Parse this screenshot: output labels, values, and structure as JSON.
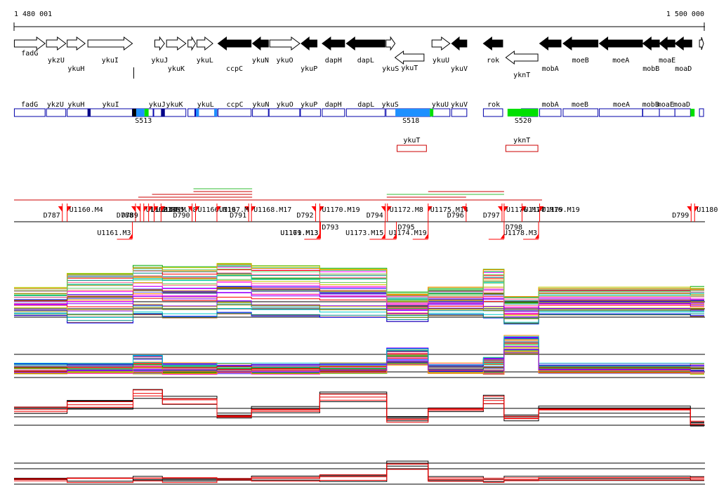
{
  "ruler": {
    "start_label": "1 480 001",
    "end_label": "1 500 000",
    "start": 1480001,
    "end": 1500000
  },
  "colors": {
    "gene_fill_forward": "#ffffff",
    "gene_fill_reverse": "#000000",
    "annotation_border": "#0000aa",
    "segment_blue": "#1e90ff",
    "segment_green": "#00e000",
    "segment_navy": "#000088",
    "transcript_border": "#cc0000",
    "breakpoint_marker": "#ff0000",
    "profile_black": "#000000",
    "profile_red": "#ee0000"
  },
  "genes": [
    {
      "name": "fadG",
      "start": 1480010,
      "end": 1480900,
      "strand": "+",
      "row": 0
    },
    {
      "name": "ykzU",
      "start": 1480940,
      "end": 1481500,
      "strand": "+",
      "row": 1
    },
    {
      "name": "ykuH",
      "start": 1481540,
      "end": 1482060,
      "strand": "+",
      "row": 2
    },
    {
      "name": "ykuI",
      "start": 1482140,
      "end": 1483430,
      "strand": "+",
      "row": 1
    },
    {
      "name": "",
      "start": 1483470,
      "end": 1483510,
      "strand": "-",
      "row": 3
    },
    {
      "name": "ykuJ",
      "start": 1484080,
      "end": 1484360,
      "strand": "+",
      "row": 1
    },
    {
      "name": "ykuK",
      "start": 1484420,
      "end": 1484980,
      "strand": "+",
      "row": 2
    },
    {
      "name": "",
      "start": 1485040,
      "end": 1485260,
      "strand": "+",
      "row": 0
    },
    {
      "name": "ykuL",
      "start": 1485300,
      "end": 1485760,
      "strand": "+",
      "row": 1
    },
    {
      "name": "ccpC",
      "start": 1485910,
      "end": 1486870,
      "strand": "-",
      "row": 2
    },
    {
      "name": "ykuN",
      "start": 1486910,
      "end": 1487370,
      "strand": "-",
      "row": 1
    },
    {
      "name": "ykuO",
      "start": 1487410,
      "end": 1488280,
      "strand": "+",
      "row": 1
    },
    {
      "name": "ykuP",
      "start": 1488320,
      "end": 1488780,
      "strand": "-",
      "row": 2
    },
    {
      "name": "dapH",
      "start": 1488930,
      "end": 1489580,
      "strand": "-",
      "row": 1
    },
    {
      "name": "dapL",
      "start": 1489630,
      "end": 1490750,
      "strand": "-",
      "row": 1
    },
    {
      "name": "ykuS",
      "start": 1490780,
      "end": 1491040,
      "strand": "+",
      "row": 2
    },
    {
      "name": "ykuT",
      "start": 1491040,
      "end": 1491880,
      "strand": "-",
      "row": 4
    },
    {
      "name": "ykuU",
      "start": 1492110,
      "end": 1492630,
      "strand": "+",
      "row": 1
    },
    {
      "name": "ykuV",
      "start": 1492680,
      "end": 1493120,
      "strand": "-",
      "row": 2
    },
    {
      "name": "rok",
      "start": 1493600,
      "end": 1494160,
      "strand": "-",
      "row": 1
    },
    {
      "name": "yknT",
      "start": 1494250,
      "end": 1495180,
      "strand": "-",
      "row": 5
    },
    {
      "name": "mobA",
      "start": 1495230,
      "end": 1495850,
      "strand": "-",
      "row": 2
    },
    {
      "name": "moeB",
      "start": 1495910,
      "end": 1496920,
      "strand": "-",
      "row": 1
    },
    {
      "name": "moeA",
      "start": 1496960,
      "end": 1498210,
      "strand": "-",
      "row": 1
    },
    {
      "name": "mobB",
      "start": 1498220,
      "end": 1498700,
      "strand": "-",
      "row": 2
    },
    {
      "name": "moaE",
      "start": 1498700,
      "end": 1499150,
      "strand": "-",
      "row": 1
    },
    {
      "name": "moaD",
      "start": 1499150,
      "end": 1499640,
      "strand": "-",
      "row": 2
    },
    {
      "name": "",
      "start": 1499860,
      "end": 1499980,
      "strand": "+",
      "row": 0
    }
  ],
  "annotation_labels": [
    {
      "name": "fadG",
      "pos": 1480450
    },
    {
      "name": "ykzU",
      "pos": 1481200
    },
    {
      "name": "ykuH",
      "pos": 1481800
    },
    {
      "name": "ykuI",
      "pos": 1482800
    },
    {
      "name": "ykuJ",
      "pos": 1484150
    },
    {
      "name": "ykuK",
      "pos": 1484650
    },
    {
      "name": "ykuL",
      "pos": 1485550
    },
    {
      "name": "ccpC",
      "pos": 1486400
    },
    {
      "name": "ykuN",
      "pos": 1487150
    },
    {
      "name": "ykuO",
      "pos": 1487850
    },
    {
      "name": "ykuP",
      "pos": 1488550
    },
    {
      "name": "dapH",
      "pos": 1489250
    },
    {
      "name": "dapL",
      "pos": 1490200
    },
    {
      "name": "ykuS",
      "pos": 1490900
    },
    {
      "name": "ykuU",
      "pos": 1492350
    },
    {
      "name": "ykuV",
      "pos": 1492900
    },
    {
      "name": "rok",
      "pos": 1493900
    },
    {
      "name": "mobA",
      "pos": 1495540
    },
    {
      "name": "moeB",
      "pos": 1496400
    },
    {
      "name": "moeA",
      "pos": 1497600
    },
    {
      "name": "mobB",
      "pos": 1498450
    },
    {
      "name": "moaE",
      "pos": 1498880
    },
    {
      "name": "moaD",
      "pos": 1499350
    }
  ],
  "annotation_boxes": [
    {
      "start": 1480010,
      "end": 1480900
    },
    {
      "start": 1480940,
      "end": 1481500
    },
    {
      "start": 1481540,
      "end": 1483430
    },
    {
      "start": 1483430,
      "end": 1484030
    },
    {
      "start": 1484050,
      "end": 1484980
    },
    {
      "start": 1485040,
      "end": 1485240
    },
    {
      "start": 1485260,
      "end": 1485880
    },
    {
      "start": 1485910,
      "end": 1486870
    },
    {
      "start": 1486910,
      "end": 1487370
    },
    {
      "start": 1487390,
      "end": 1488280
    },
    {
      "start": 1488300,
      "end": 1488880
    },
    {
      "start": 1488930,
      "end": 1489580
    },
    {
      "start": 1489630,
      "end": 1490750
    },
    {
      "start": 1490780,
      "end": 1492070
    },
    {
      "start": 1492110,
      "end": 1492630
    },
    {
      "start": 1492680,
      "end": 1493120
    },
    {
      "start": 1493600,
      "end": 1494160
    },
    {
      "start": 1494700,
      "end": 1495180
    },
    {
      "start": 1495230,
      "end": 1495850
    },
    {
      "start": 1495910,
      "end": 1496920
    },
    {
      "start": 1496960,
      "end": 1498210
    },
    {
      "start": 1498220,
      "end": 1498700
    },
    {
      "start": 1498700,
      "end": 1499150
    },
    {
      "start": 1499150,
      "end": 1499600
    },
    {
      "start": 1499860,
      "end": 1499980
    }
  ],
  "annotation_fills": [
    {
      "start": 1482130,
      "end": 1482220,
      "color": "#000088"
    },
    {
      "start": 1483430,
      "end": 1483540,
      "color": "#000000"
    },
    {
      "start": 1483540,
      "end": 1483780,
      "color": "#1e90ff"
    },
    {
      "start": 1483780,
      "end": 1483900,
      "color": "#00e000"
    },
    {
      "start": 1484260,
      "end": 1484370,
      "color": "#000088"
    },
    {
      "start": 1485270,
      "end": 1485360,
      "color": "#1e90ff"
    },
    {
      "start": 1485800,
      "end": 1485880,
      "color": "#1e90ff"
    },
    {
      "start": 1491050,
      "end": 1492050,
      "color": "#1e90ff"
    },
    {
      "start": 1492050,
      "end": 1492150,
      "color": "#00e000"
    },
    {
      "start": 1494300,
      "end": 1495190,
      "color": "#00e000"
    },
    {
      "start": 1499600,
      "end": 1499720,
      "color": "#00e000"
    }
  ],
  "segment_labels": [
    {
      "name": "S513",
      "pos": 1483750
    },
    {
      "name": "S518",
      "pos": 1491500
    },
    {
      "name": "S520",
      "pos": 1494750
    }
  ],
  "transcripts": [
    {
      "name": "ykuT",
      "start": 1491100,
      "end": 1491950
    },
    {
      "name": "yknT",
      "start": 1494250,
      "end": 1495180
    }
  ],
  "upper_breakpoints": [
    {
      "label": "D787",
      "pos": 1481400,
      "side": "left"
    },
    {
      "label": "U1160.M4",
      "pos": 1481540,
      "side": "right"
    },
    {
      "label": "D788",
      "pos": 1483520,
      "side": "left"
    },
    {
      "label": "D789",
      "pos": 1483660,
      "side": "left"
    },
    {
      "label": "U1162.M",
      "pos": 1483760,
      "side": "right"
    },
    {
      "label": "U1163.M",
      "pos": 1483900,
      "side": "right"
    },
    {
      "label": "U1164.M",
      "pos": 1484060,
      "side": "right"
    },
    {
      "label": "U1165.M8",
      "pos": 1484260,
      "side": "right"
    },
    {
      "label": "D790",
      "pos": 1485160,
      "side": "left"
    },
    {
      "label": "U1166.M19",
      "pos": 1485260,
      "side": "right"
    },
    {
      "label": "D791",
      "pos": 1486800,
      "side": "left"
    },
    {
      "label": "U1167.M",
      "pos": 1485880,
      "side": "right"
    },
    {
      "label": "U1168.M17",
      "pos": 1486880,
      "side": "right"
    },
    {
      "label": "D792",
      "pos": 1488740,
      "side": "left"
    },
    {
      "label": "U1170.M19",
      "pos": 1488860,
      "side": "right"
    },
    {
      "label": "D794",
      "pos": 1490760,
      "side": "left"
    },
    {
      "label": "U1172.M8",
      "pos": 1490820,
      "side": "right"
    },
    {
      "label": "U1175.M14",
      "pos": 1492000,
      "side": "right"
    },
    {
      "label": "D796",
      "pos": 1493100,
      "side": "left"
    },
    {
      "label": "D797",
      "pos": 1494140,
      "side": "left"
    },
    {
      "label": "U1176.M14",
      "pos": 1494200,
      "side": "right"
    },
    {
      "label": "U1177.M16",
      "pos": 1494720,
      "side": "right"
    },
    {
      "label": "U1179.M19",
      "pos": 1495230,
      "side": "right"
    },
    {
      "label": "D799",
      "pos": 1499620,
      "side": "left"
    },
    {
      "label": "U1180",
      "pos": 1499720,
      "side": "right"
    }
  ],
  "lower_breakpoints": [
    {
      "label": "U1161.M3",
      "pos": 1483430,
      "side": "left"
    },
    {
      "label": "U1169.M13",
      "pos": 1488860,
      "side": "left"
    },
    {
      "label": "U1171.M13",
      "pos": 1488860,
      "side": "left"
    },
    {
      "label": "D793",
      "pos": 1488880,
      "side": "right"
    },
    {
      "label": "U1173.M15",
      "pos": 1490750,
      "side": "left"
    },
    {
      "label": "U1174.M19",
      "pos": 1492000,
      "side": "left"
    },
    {
      "label": "D795",
      "pos": 1491080,
      "side": "right"
    },
    {
      "label": "U1178.M3",
      "pos": 1495200,
      "side": "left"
    },
    {
      "label": "D798",
      "pos": 1494200,
      "side": "right"
    }
  ],
  "coverage_lines": [
    {
      "start": 1480001,
      "end": 1495300,
      "level": 0,
      "color": "#cc0000"
    },
    {
      "start": 1483600,
      "end": 1486900,
      "level": 1,
      "color": "#cc0000"
    },
    {
      "start": 1484000,
      "end": 1486900,
      "level": 2,
      "color": "#cc0000"
    },
    {
      "start": 1485200,
      "end": 1486900,
      "level": 3,
      "color": "#cc0000"
    },
    {
      "start": 1485200,
      "end": 1486900,
      "level": 4,
      "color": "#33bb33"
    },
    {
      "start": 1490800,
      "end": 1493100,
      "level": 1,
      "color": "#cc0000"
    },
    {
      "start": 1490800,
      "end": 1494200,
      "level": 2,
      "color": "#33bb33"
    },
    {
      "start": 1492000,
      "end": 1494200,
      "level": 3,
      "color": "#cc0000"
    }
  ]
}
